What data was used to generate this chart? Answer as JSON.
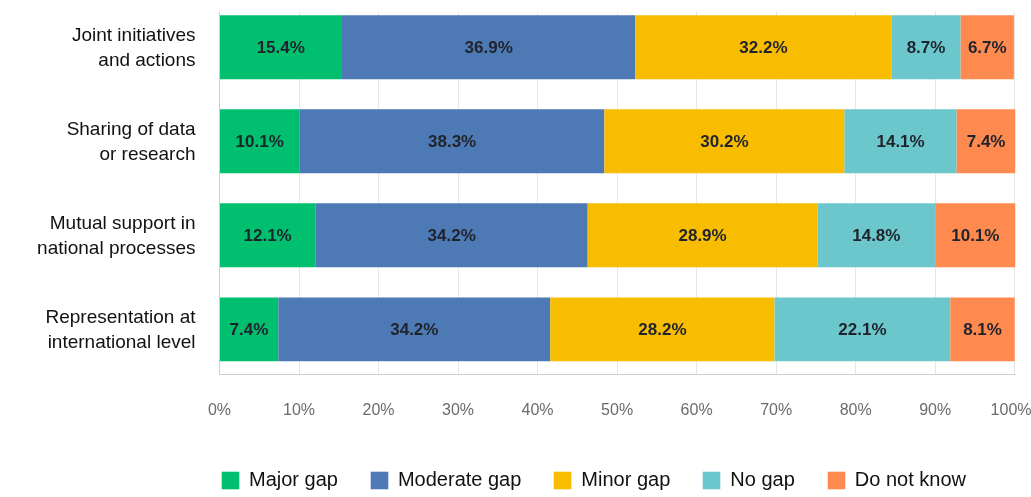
{
  "chart_data": {
    "type": "bar",
    "orientation": "horizontal",
    "stacked": true,
    "categories": [
      "Joint initiatives and actions",
      "Sharing of data or research",
      "Mutual support in national processes",
      "Representation at international level"
    ],
    "series": [
      {
        "name": "Major gap",
        "color": "#00c06f",
        "values": [
          15.4,
          10.1,
          12.1,
          7.4
        ],
        "value_labels": [
          "15.4%",
          "10.1%",
          "12.1%",
          "7.4%"
        ]
      },
      {
        "name": "Moderate gap",
        "color": "#4d7ab5",
        "values": [
          36.9,
          38.3,
          34.2,
          34.2
        ],
        "value_labels": [
          "36.9%",
          "38.3%",
          "34.2%",
          "34.2%"
        ]
      },
      {
        "name": "Minor gap",
        "color": "#f8bd00",
        "values": [
          32.2,
          30.2,
          28.9,
          28.2
        ],
        "value_labels": [
          "32.2%",
          "30.2%",
          "28.9%",
          "28.2%"
        ]
      },
      {
        "name": "No gap",
        "color": "#6bc7cc",
        "values": [
          8.7,
          14.1,
          14.8,
          22.1
        ],
        "value_labels": [
          "8.7%",
          "14.1%",
          "14.8%",
          "22.1%"
        ]
      },
      {
        "name": "Do not know",
        "color": "#ff8a4f",
        "values": [
          6.7,
          7.4,
          10.1,
          8.1
        ],
        "value_labels": [
          "6.7%",
          "7.4%",
          "10.1%",
          "8.1%"
        ]
      }
    ],
    "xlim": [
      0,
      100.1
    ],
    "xticks": [
      {
        "value": 0,
        "label": "0%"
      },
      {
        "value": 10,
        "label": "10%"
      },
      {
        "value": 20,
        "label": "20%"
      },
      {
        "value": 30,
        "label": "30%"
      },
      {
        "value": 40,
        "label": "40%"
      },
      {
        "value": 50,
        "label": "50%"
      },
      {
        "value": 60,
        "label": "60%"
      },
      {
        "value": 70,
        "label": "70%"
      },
      {
        "value": 80,
        "label": "80%"
      },
      {
        "value": 90,
        "label": "90%"
      },
      {
        "value": 100,
        "label": "100%"
      }
    ],
    "grid": "x",
    "legend": "bottom"
  }
}
